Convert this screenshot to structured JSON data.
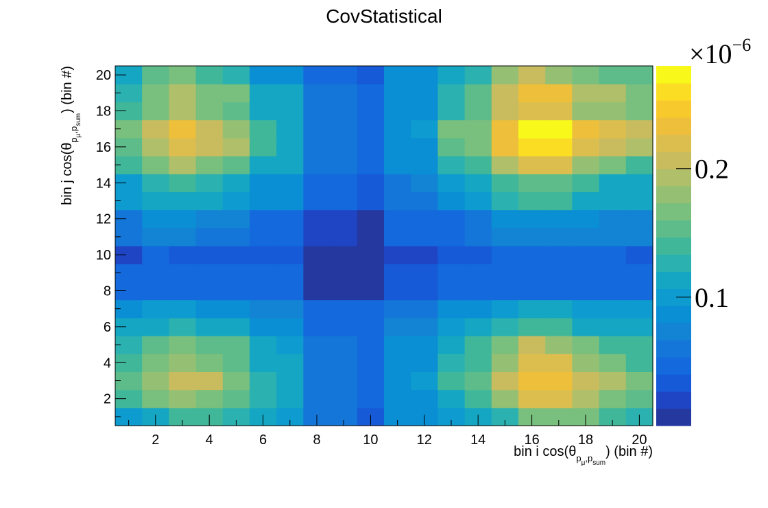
{
  "chart_data": {
    "type": "heatmap",
    "title": "CovStatistical",
    "xlabel": "bin i cos(θ p_μ, p_sum) (bin #)",
    "ylabel": "bin j cos(θ p_μ, p_sum) (bin #)",
    "xlabel_parts": {
      "pre": "bin i cos(θ",
      "sub1": "p",
      "sub1sub": "μ",
      "comma": ",",
      "sub2": "p",
      "sub2sub": "sum",
      "post": ") (bin #)"
    },
    "ylabel_parts": {
      "pre": "bin j cos(θ",
      "sub1": "p",
      "sub1sub": "μ",
      "comma": ",",
      "sub2": "p",
      "sub2sub": "sum",
      "post": ") (bin #)"
    },
    "x_range": [
      0.5,
      20.5
    ],
    "y_range": [
      0.5,
      20.5
    ],
    "x_ticks": [
      2,
      4,
      6,
      8,
      10,
      12,
      14,
      16,
      18,
      20
    ],
    "y_ticks": [
      2,
      4,
      6,
      8,
      10,
      12,
      14,
      16,
      18,
      20
    ],
    "z_range": [
      0.0,
      0.28
    ],
    "z_ticks": [
      0.1,
      0.2
    ],
    "z_tick_labels": [
      "0.1",
      "0.2"
    ],
    "z_exponent": "×10",
    "z_exponent_power": "−6",
    "palette": [
      "#25389f",
      "#1f45c4",
      "#165ad8",
      "#1469dd",
      "#1476d8",
      "#1383d4",
      "#0a8ed4",
      "#0e9bcf",
      "#14a6c3",
      "#2ab1b0",
      "#41b79a",
      "#5dbc8a",
      "#79bf7e",
      "#95c074",
      "#b0bf69",
      "#c9bc5f",
      "#dcbe4f",
      "#eebf3a",
      "#f8c92d",
      "#fbde24",
      "#f8f91b"
    ],
    "cells": [
      [
        0.1,
        0.12,
        0.14,
        0.14,
        0.13,
        0.11,
        0.1,
        0.06,
        0.06,
        0.03,
        0.08,
        0.08,
        0.1,
        0.11,
        0.13,
        0.16,
        0.17,
        0.16,
        0.14,
        0.13
      ],
      [
        0.14,
        0.16,
        0.18,
        0.16,
        0.15,
        0.13,
        0.11,
        0.06,
        0.06,
        0.04,
        0.09,
        0.09,
        0.12,
        0.14,
        0.18,
        0.22,
        0.22,
        0.19,
        0.17,
        0.15
      ],
      [
        0.15,
        0.18,
        0.21,
        0.2,
        0.17,
        0.13,
        0.11,
        0.06,
        0.06,
        0.05,
        0.09,
        0.1,
        0.14,
        0.15,
        0.21,
        0.24,
        0.24,
        0.21,
        0.19,
        0.16
      ],
      [
        0.14,
        0.16,
        0.18,
        0.16,
        0.15,
        0.12,
        0.11,
        0.06,
        0.06,
        0.04,
        0.08,
        0.09,
        0.13,
        0.14,
        0.18,
        0.22,
        0.22,
        0.18,
        0.16,
        0.14
      ],
      [
        0.13,
        0.15,
        0.17,
        0.15,
        0.15,
        0.11,
        0.1,
        0.06,
        0.06,
        0.04,
        0.08,
        0.08,
        0.12,
        0.14,
        0.17,
        0.2,
        0.18,
        0.16,
        0.14,
        0.14
      ],
      [
        0.11,
        0.12,
        0.13,
        0.12,
        0.11,
        0.09,
        0.09,
        0.05,
        0.05,
        0.04,
        0.07,
        0.07,
        0.1,
        0.11,
        0.13,
        0.14,
        0.14,
        0.12,
        0.12,
        0.11
      ],
      [
        0.09,
        0.1,
        0.1,
        0.09,
        0.09,
        0.07,
        0.07,
        0.05,
        0.05,
        0.04,
        0.06,
        0.06,
        0.08,
        0.09,
        0.1,
        0.11,
        0.11,
        0.1,
        0.1,
        0.1
      ],
      [
        0.04,
        0.05,
        0.05,
        0.04,
        0.04,
        0.04,
        0.04,
        0.01,
        0.01,
        0.01,
        0.03,
        0.03,
        0.04,
        0.04,
        0.05,
        0.05,
        0.05,
        0.05,
        0.05,
        0.05
      ],
      [
        0.04,
        0.05,
        0.05,
        0.04,
        0.04,
        0.04,
        0.04,
        0.01,
        0.01,
        0.01,
        0.03,
        0.03,
        0.04,
        0.04,
        0.05,
        0.05,
        0.05,
        0.05,
        0.05,
        0.04
      ],
      [
        0.02,
        0.04,
        0.03,
        0.03,
        0.03,
        0.03,
        0.03,
        0.01,
        0.01,
        0.01,
        0.02,
        0.02,
        0.03,
        0.03,
        0.04,
        0.04,
        0.04,
        0.04,
        0.04,
        0.03
      ],
      [
        0.06,
        0.07,
        0.07,
        0.06,
        0.06,
        0.05,
        0.05,
        0.02,
        0.02,
        0.01,
        0.04,
        0.04,
        0.05,
        0.06,
        0.07,
        0.07,
        0.07,
        0.07,
        0.07,
        0.07
      ],
      [
        0.06,
        0.08,
        0.08,
        0.07,
        0.07,
        0.05,
        0.05,
        0.02,
        0.02,
        0.01,
        0.04,
        0.04,
        0.05,
        0.06,
        0.08,
        0.08,
        0.08,
        0.08,
        0.07,
        0.07
      ],
      [
        0.1,
        0.11,
        0.12,
        0.11,
        0.1,
        0.08,
        0.08,
        0.05,
        0.05,
        0.03,
        0.06,
        0.06,
        0.09,
        0.1,
        0.13,
        0.14,
        0.14,
        0.12,
        0.11,
        0.11
      ],
      [
        0.1,
        0.13,
        0.14,
        0.13,
        0.12,
        0.09,
        0.08,
        0.05,
        0.05,
        0.03,
        0.06,
        0.07,
        0.1,
        0.11,
        0.14,
        0.15,
        0.15,
        0.14,
        0.12,
        0.11
      ],
      [
        0.14,
        0.17,
        0.19,
        0.17,
        0.15,
        0.12,
        0.11,
        0.06,
        0.06,
        0.04,
        0.08,
        0.08,
        0.13,
        0.14,
        0.19,
        0.22,
        0.22,
        0.18,
        0.16,
        0.14
      ],
      [
        0.15,
        0.19,
        0.22,
        0.21,
        0.19,
        0.14,
        0.11,
        0.06,
        0.06,
        0.04,
        0.09,
        0.09,
        0.15,
        0.16,
        0.23,
        0.26,
        0.26,
        0.22,
        0.21,
        0.19
      ],
      [
        0.16,
        0.21,
        0.23,
        0.21,
        0.18,
        0.14,
        0.12,
        0.06,
        0.06,
        0.04,
        0.09,
        0.1,
        0.16,
        0.17,
        0.23,
        0.28,
        0.28,
        0.23,
        0.22,
        0.2
      ],
      [
        0.14,
        0.17,
        0.19,
        0.17,
        0.15,
        0.11,
        0.11,
        0.06,
        0.06,
        0.04,
        0.09,
        0.09,
        0.13,
        0.15,
        0.2,
        0.22,
        0.22,
        0.18,
        0.18,
        0.17
      ],
      [
        0.13,
        0.17,
        0.19,
        0.17,
        0.16,
        0.12,
        0.12,
        0.06,
        0.06,
        0.04,
        0.08,
        0.09,
        0.13,
        0.15,
        0.21,
        0.23,
        0.23,
        0.19,
        0.19,
        0.17
      ],
      [
        0.11,
        0.15,
        0.16,
        0.14,
        0.13,
        0.09,
        0.09,
        0.05,
        0.05,
        0.03,
        0.08,
        0.08,
        0.11,
        0.13,
        0.18,
        0.2,
        0.18,
        0.16,
        0.15,
        0.15
      ]
    ]
  }
}
